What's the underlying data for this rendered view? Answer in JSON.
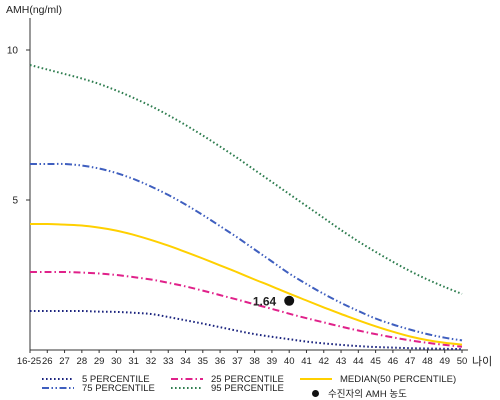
{
  "chart_data": {
    "type": "line",
    "ylabel": "AMH(ng/ml)",
    "xlabel": "나이",
    "ylim": [
      0,
      11
    ],
    "yticks": [
      10,
      5
    ],
    "x": [
      "16-25",
      "26",
      "27",
      "28",
      "29",
      "30",
      "31",
      "32",
      "33",
      "34",
      "35",
      "36",
      "37",
      "38",
      "39",
      "40",
      "41",
      "42",
      "43",
      "44",
      "45",
      "46",
      "47",
      "48",
      "49",
      "50"
    ],
    "series": [
      {
        "name": "5 PERCENTILE",
        "color": "#1a237e",
        "dash": "dotted",
        "values": [
          1.3,
          1.3,
          1.3,
          1.3,
          1.28,
          1.27,
          1.24,
          1.2,
          1.1,
          0.99,
          0.88,
          0.76,
          0.64,
          0.53,
          0.44,
          0.36,
          0.28,
          0.22,
          0.17,
          0.13,
          0.1,
          0.08,
          0.06,
          0.05,
          0.04,
          0.03
        ]
      },
      {
        "name": "25 PERCENTILE",
        "color": "#e0218a",
        "dash": "dashdot",
        "values": [
          2.6,
          2.6,
          2.6,
          2.58,
          2.55,
          2.5,
          2.43,
          2.35,
          2.24,
          2.12,
          1.98,
          1.83,
          1.68,
          1.52,
          1.37,
          1.21,
          1.06,
          0.92,
          0.78,
          0.65,
          0.53,
          0.42,
          0.32,
          0.24,
          0.17,
          0.11
        ]
      },
      {
        "name": "MEDIAN(50 PERCENTILE)",
        "color": "#ffd000",
        "dash": "solid",
        "values": [
          4.2,
          4.2,
          4.18,
          4.15,
          4.08,
          3.98,
          3.84,
          3.67,
          3.48,
          3.27,
          3.05,
          2.82,
          2.59,
          2.35,
          2.12,
          1.88,
          1.65,
          1.42,
          1.2,
          0.99,
          0.79,
          0.61,
          0.45,
          0.33,
          0.24,
          0.18
        ]
      },
      {
        "name": "75 PERCENTILE",
        "color": "#3f5fbf",
        "dash": "dashdotdot",
        "values": [
          6.2,
          6.2,
          6.2,
          6.15,
          6.05,
          5.9,
          5.7,
          5.45,
          5.17,
          4.85,
          4.5,
          4.13,
          3.75,
          3.35,
          2.95,
          2.55,
          2.2,
          1.87,
          1.57,
          1.3,
          1.05,
          0.85,
          0.68,
          0.53,
          0.41,
          0.32
        ]
      },
      {
        "name": "95 PERCENTILE",
        "color": "#2e7d4f",
        "dash": "dotted",
        "values": [
          9.5,
          9.35,
          9.2,
          9.05,
          8.87,
          8.65,
          8.4,
          8.13,
          7.83,
          7.5,
          7.15,
          6.78,
          6.4,
          6.0,
          5.6,
          5.2,
          4.8,
          4.4,
          4.0,
          3.62,
          3.27,
          2.94,
          2.63,
          2.35,
          2.1,
          1.87
        ]
      }
    ],
    "highlight": {
      "label": "수진자의 AMH 농도",
      "x": "40",
      "value": 1.64,
      "value_label": "1.64",
      "color": "#111111"
    },
    "legend": {
      "position": "bottom",
      "items": [
        {
          "name": "5 PERCENTILE",
          "color": "#1a237e",
          "dash": "dotted"
        },
        {
          "name": "25 PERCENTILE",
          "color": "#e0218a",
          "dash": "dashdot"
        },
        {
          "name": "MEDIAN(50 PERCENTILE)",
          "color": "#ffd000",
          "dash": "solid"
        },
        {
          "name": "75 PERCENTILE",
          "color": "#3f5fbf",
          "dash": "dashdotdot"
        },
        {
          "name": "95 PERCENTILE",
          "color": "#2e7d4f",
          "dash": "dotted"
        },
        {
          "name": "수진자의 AMH 농도",
          "color": "#111111",
          "marker": "dot"
        }
      ]
    },
    "grid": false
  }
}
